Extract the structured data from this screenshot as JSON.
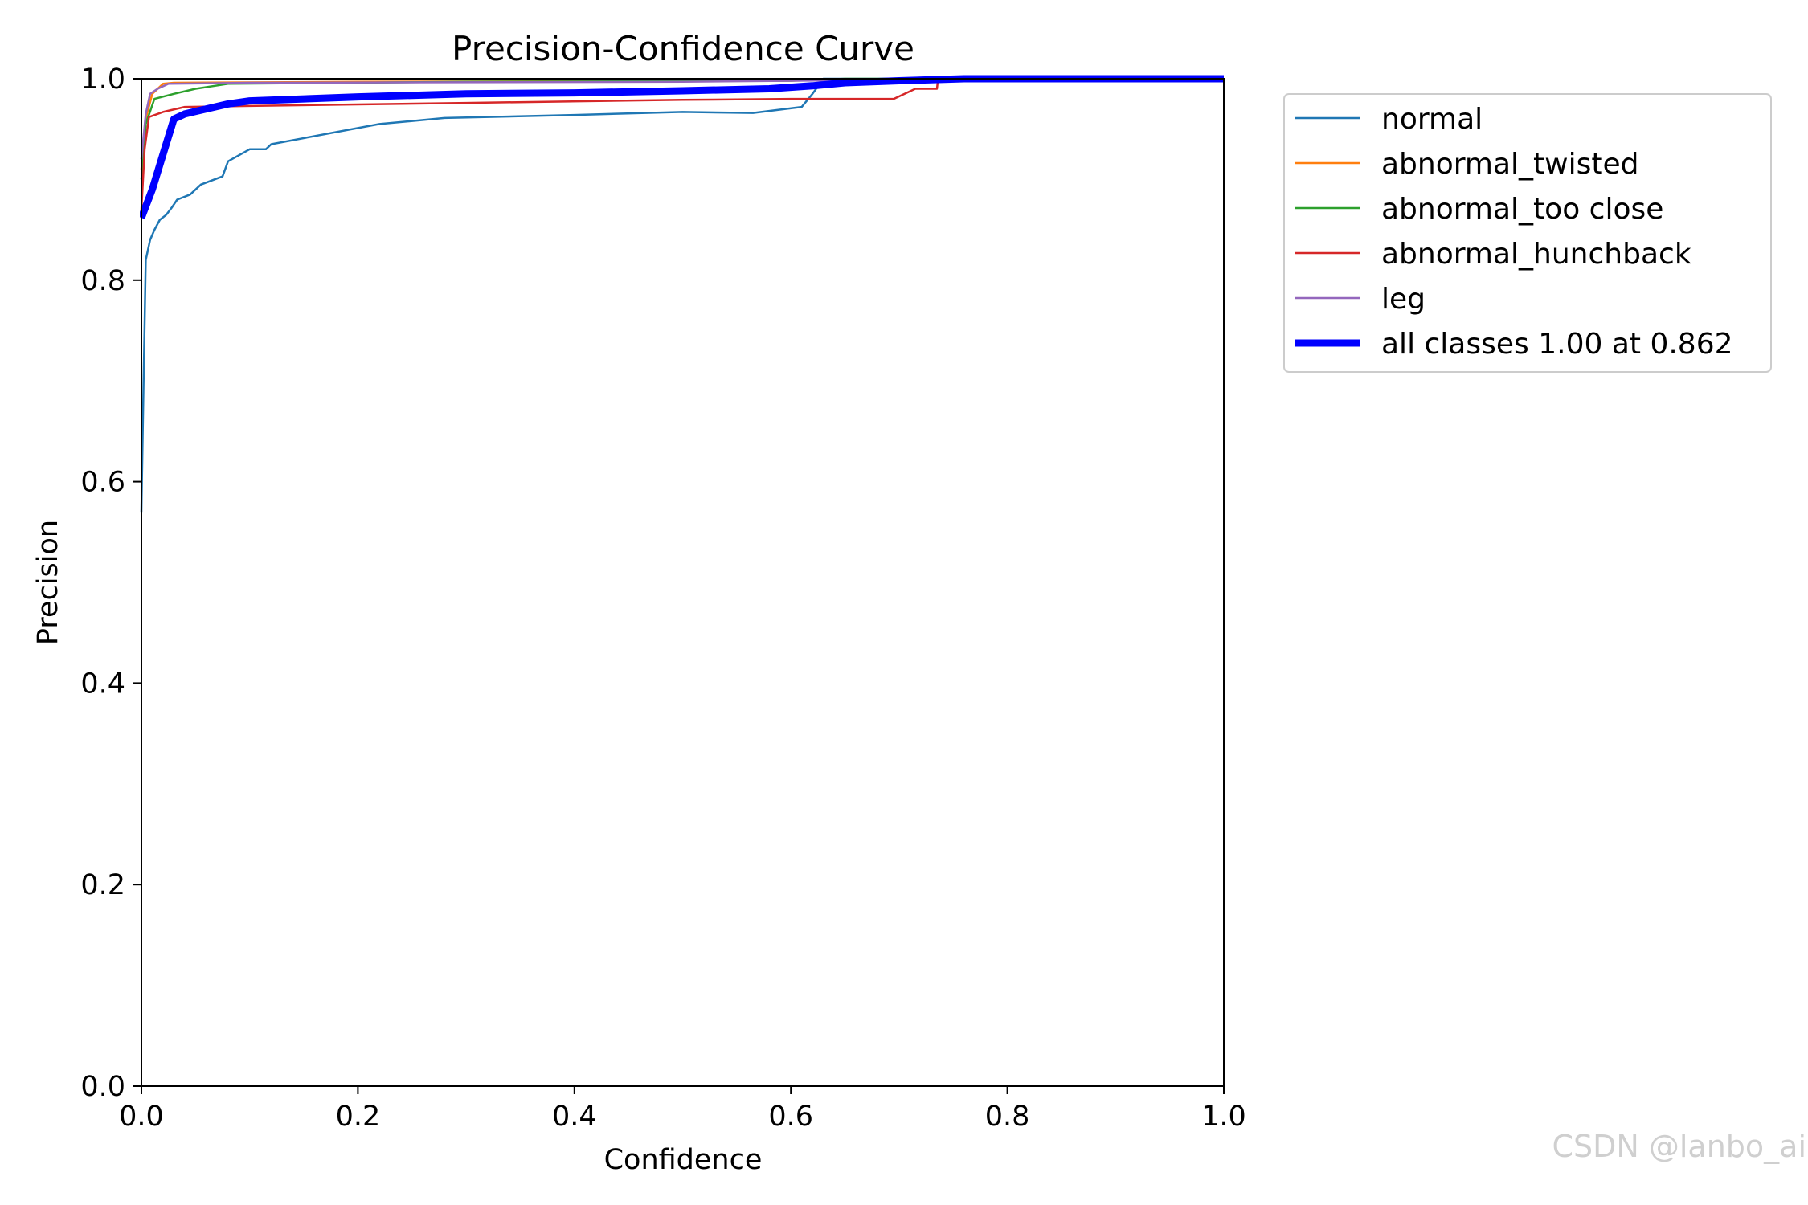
{
  "chart_data": {
    "type": "line",
    "title": "Precision-Confidence Curve",
    "xlabel": "Confidence",
    "ylabel": "Precision",
    "xlim": [
      0,
      1
    ],
    "ylim": [
      0,
      1
    ],
    "xticks": [
      0.0,
      0.2,
      0.4,
      0.6,
      0.8,
      1.0
    ],
    "yticks": [
      0.0,
      0.2,
      0.4,
      0.6,
      0.8,
      1.0
    ],
    "xtick_labels": [
      "0.0",
      "0.2",
      "0.4",
      "0.6",
      "0.8",
      "1.0"
    ],
    "ytick_labels": [
      "0.0",
      "0.2",
      "0.4",
      "0.6",
      "0.8",
      "1.0"
    ],
    "grid": false,
    "legend_position": "outside-right-top",
    "series": [
      {
        "name": "normal",
        "color": "#1f77b4",
        "width": "thin",
        "points": [
          [
            0.0,
            0.57
          ],
          [
            0.002,
            0.7
          ],
          [
            0.004,
            0.82
          ],
          [
            0.008,
            0.84
          ],
          [
            0.012,
            0.85
          ],
          [
            0.017,
            0.86
          ],
          [
            0.023,
            0.865
          ],
          [
            0.028,
            0.872
          ],
          [
            0.033,
            0.88
          ],
          [
            0.045,
            0.885
          ],
          [
            0.055,
            0.895
          ],
          [
            0.075,
            0.903
          ],
          [
            0.08,
            0.918
          ],
          [
            0.1,
            0.93
          ],
          [
            0.115,
            0.93
          ],
          [
            0.12,
            0.935
          ],
          [
            0.22,
            0.955
          ],
          [
            0.28,
            0.961
          ],
          [
            0.4,
            0.964
          ],
          [
            0.5,
            0.967
          ],
          [
            0.565,
            0.966
          ],
          [
            0.61,
            0.972
          ],
          [
            0.62,
            0.985
          ],
          [
            0.63,
            1.0
          ],
          [
            1.0,
            1.0
          ]
        ]
      },
      {
        "name": "abnormal_twisted",
        "color": "#ff7f0e",
        "width": "thin",
        "points": [
          [
            0.0,
            0.91
          ],
          [
            0.004,
            0.96
          ],
          [
            0.01,
            0.985
          ],
          [
            0.02,
            0.995
          ],
          [
            0.03,
            0.996
          ],
          [
            0.2,
            0.997
          ],
          [
            0.6,
            0.998
          ],
          [
            0.7,
            1.0
          ],
          [
            1.0,
            1.0
          ]
        ]
      },
      {
        "name": "abnormal_too close",
        "color": "#2ca02c",
        "width": "thin",
        "points": [
          [
            0.0,
            0.9
          ],
          [
            0.004,
            0.955
          ],
          [
            0.012,
            0.98
          ],
          [
            0.03,
            0.985
          ],
          [
            0.05,
            0.99
          ],
          [
            0.08,
            0.995
          ],
          [
            0.3,
            0.997
          ],
          [
            0.6,
            0.998
          ],
          [
            0.65,
            1.0
          ],
          [
            1.0,
            1.0
          ]
        ]
      },
      {
        "name": "abnormal_hunchback",
        "color": "#d62728",
        "width": "thin",
        "points": [
          [
            0.0,
            0.87
          ],
          [
            0.003,
            0.93
          ],
          [
            0.007,
            0.962
          ],
          [
            0.02,
            0.967
          ],
          [
            0.04,
            0.972
          ],
          [
            0.1,
            0.973
          ],
          [
            0.3,
            0.976
          ],
          [
            0.5,
            0.979
          ],
          [
            0.6,
            0.98
          ],
          [
            0.695,
            0.98
          ],
          [
            0.715,
            0.99
          ],
          [
            0.735,
            0.99
          ],
          [
            0.736,
            1.0
          ],
          [
            1.0,
            1.0
          ]
        ]
      },
      {
        "name": "leg",
        "color": "#9467bd",
        "width": "thin",
        "points": [
          [
            0.0,
            0.92
          ],
          [
            0.004,
            0.965
          ],
          [
            0.008,
            0.985
          ],
          [
            0.015,
            0.99
          ],
          [
            0.025,
            0.995
          ],
          [
            0.1,
            0.996
          ],
          [
            0.5,
            0.997
          ],
          [
            0.7,
            0.999
          ],
          [
            0.75,
            1.0
          ],
          [
            1.0,
            1.0
          ]
        ]
      },
      {
        "name": "all classes 1.00 at 0.862",
        "color": "#0000ff",
        "width": "thick",
        "points": [
          [
            0.0,
            0.862
          ],
          [
            0.01,
            0.89
          ],
          [
            0.02,
            0.925
          ],
          [
            0.03,
            0.96
          ],
          [
            0.04,
            0.965
          ],
          [
            0.06,
            0.97
          ],
          [
            0.08,
            0.975
          ],
          [
            0.1,
            0.978
          ],
          [
            0.2,
            0.982
          ],
          [
            0.3,
            0.985
          ],
          [
            0.4,
            0.986
          ],
          [
            0.5,
            0.988
          ],
          [
            0.58,
            0.99
          ],
          [
            0.62,
            0.993
          ],
          [
            0.65,
            0.996
          ],
          [
            0.7,
            0.998
          ],
          [
            0.76,
            1.0
          ],
          [
            1.0,
            1.0
          ]
        ]
      }
    ]
  },
  "watermark": "CSDN @lanbo_ai"
}
